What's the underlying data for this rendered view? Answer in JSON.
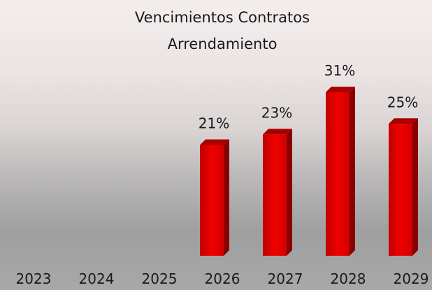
{
  "chart_data": {
    "type": "bar",
    "title": "Vencimientos Contratos Arrendamiento",
    "categories": [
      "2023",
      "2024",
      "2025",
      "2026",
      "2027",
      "2028",
      "2029"
    ],
    "values": [
      null,
      null,
      null,
      21,
      23,
      31,
      25
    ],
    "value_labels": [
      null,
      null,
      null,
      "21%",
      "23%",
      "31%",
      "25%"
    ],
    "color": "#e00000"
  }
}
